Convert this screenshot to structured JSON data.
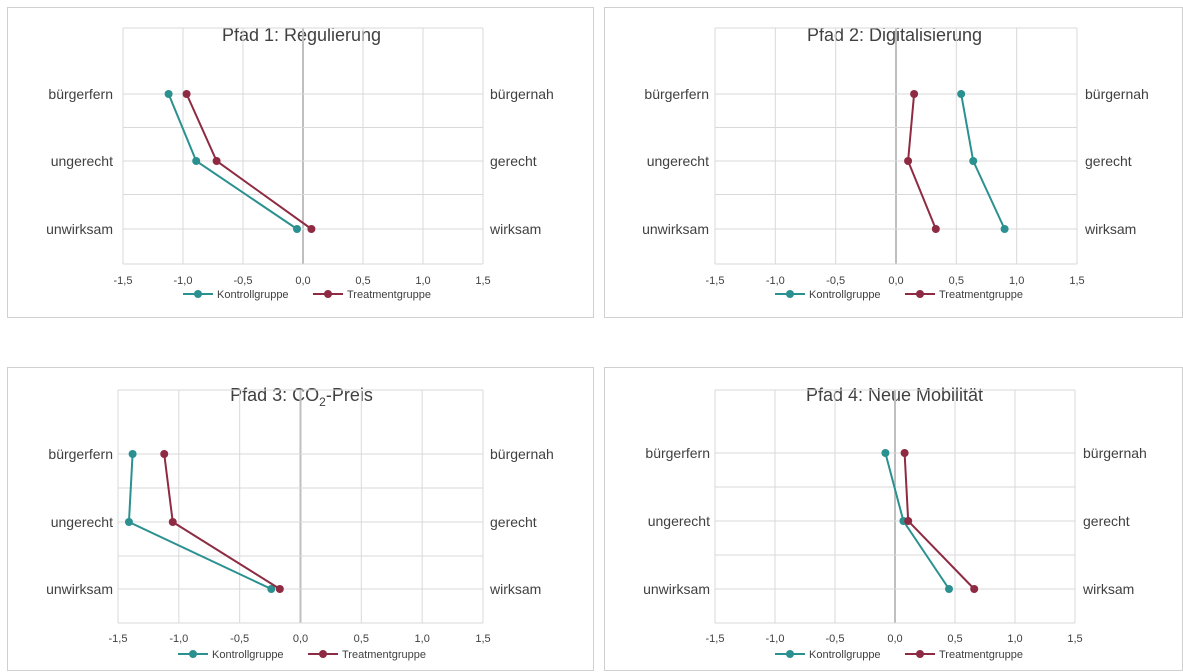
{
  "colors": {
    "kontroll": "#2a9090",
    "treatment": "#8e2b43",
    "grid": "#d9d9d9",
    "zero": "#bfbfbf"
  },
  "chart_data": [
    {
      "type": "line",
      "title": "Pfad 1: Regulierung",
      "title_main": "Pfad 1: Regulierung",
      "title_sub": "",
      "title_suffix": "",
      "left_labels": [
        "bürgerfern",
        "ungerecht",
        "unwirksam"
      ],
      "right_labels": [
        "bürgernah",
        "gerecht",
        "wirksam"
      ],
      "xlim": [
        -1.5,
        1.5
      ],
      "xticks": [
        "-1,5",
        "-1,0",
        "-0,5",
        "0,0",
        "0,5",
        "1,0",
        "1,5"
      ],
      "legend_position": "bottom",
      "series": [
        {
          "name": "Kontrollgruppe",
          "values": [
            -1.12,
            -0.89,
            -0.05
          ]
        },
        {
          "name": "Treatmentgruppe",
          "values": [
            -0.97,
            -0.72,
            0.07
          ]
        }
      ]
    },
    {
      "type": "line",
      "title": "Pfad 2: Digitalisierung",
      "title_main": "Pfad 2: Digitalisierung",
      "title_sub": "",
      "title_suffix": "",
      "left_labels": [
        "bürgerfern",
        "ungerecht",
        "unwirksam"
      ],
      "right_labels": [
        "bürgernah",
        "gerecht",
        "wirksam"
      ],
      "xlim": [
        -1.5,
        1.5
      ],
      "xticks": [
        "-1,5",
        "-1,0",
        "-0,5",
        "0,0",
        "0,5",
        "1,0",
        "1,5"
      ],
      "legend_position": "bottom",
      "series": [
        {
          "name": "Kontrollgruppe",
          "values": [
            0.54,
            0.64,
            0.9
          ]
        },
        {
          "name": "Treatmentgruppe",
          "values": [
            0.15,
            0.1,
            0.33
          ]
        }
      ]
    },
    {
      "type": "line",
      "title": "Pfad 3: CO2-Preis",
      "title_main": "Pfad 3: CO",
      "title_sub": "2",
      "title_suffix": "-Preis",
      "left_labels": [
        "bürgerfern",
        "ungerecht",
        "unwirksam"
      ],
      "right_labels": [
        "bürgernah",
        "gerecht",
        "wirksam"
      ],
      "xlim": [
        -1.5,
        1.5
      ],
      "xticks": [
        "-1,5",
        "-1,0",
        "-0,5",
        "0,0",
        "0,5",
        "1,0",
        "1,5"
      ],
      "legend_position": "bottom",
      "series": [
        {
          "name": "Kontrollgruppe",
          "values": [
            -1.38,
            -1.41,
            -0.24
          ]
        },
        {
          "name": "Treatmentgruppe",
          "values": [
            -1.12,
            -1.05,
            -0.17
          ]
        }
      ]
    },
    {
      "type": "line",
      "title": "Pfad 4: Neue Mobilität",
      "title_main": "Pfad 4: Neue Mobilität",
      "title_sub": "",
      "title_suffix": "",
      "left_labels": [
        "bürgerfern",
        "ungerecht",
        "unwirksam"
      ],
      "right_labels": [
        "bürgernah",
        "gerecht",
        "wirksam"
      ],
      "xlim": [
        -1.5,
        1.5
      ],
      "xticks": [
        "-1,5",
        "-1,0",
        "-0,5",
        "0,0",
        "0,5",
        "1,0",
        "1,5"
      ],
      "legend_position": "bottom",
      "series": [
        {
          "name": "Kontrollgruppe",
          "values": [
            -0.08,
            0.07,
            0.45
          ]
        },
        {
          "name": "Treatmentgruppe",
          "values": [
            0.08,
            0.11,
            0.66
          ]
        }
      ]
    }
  ]
}
